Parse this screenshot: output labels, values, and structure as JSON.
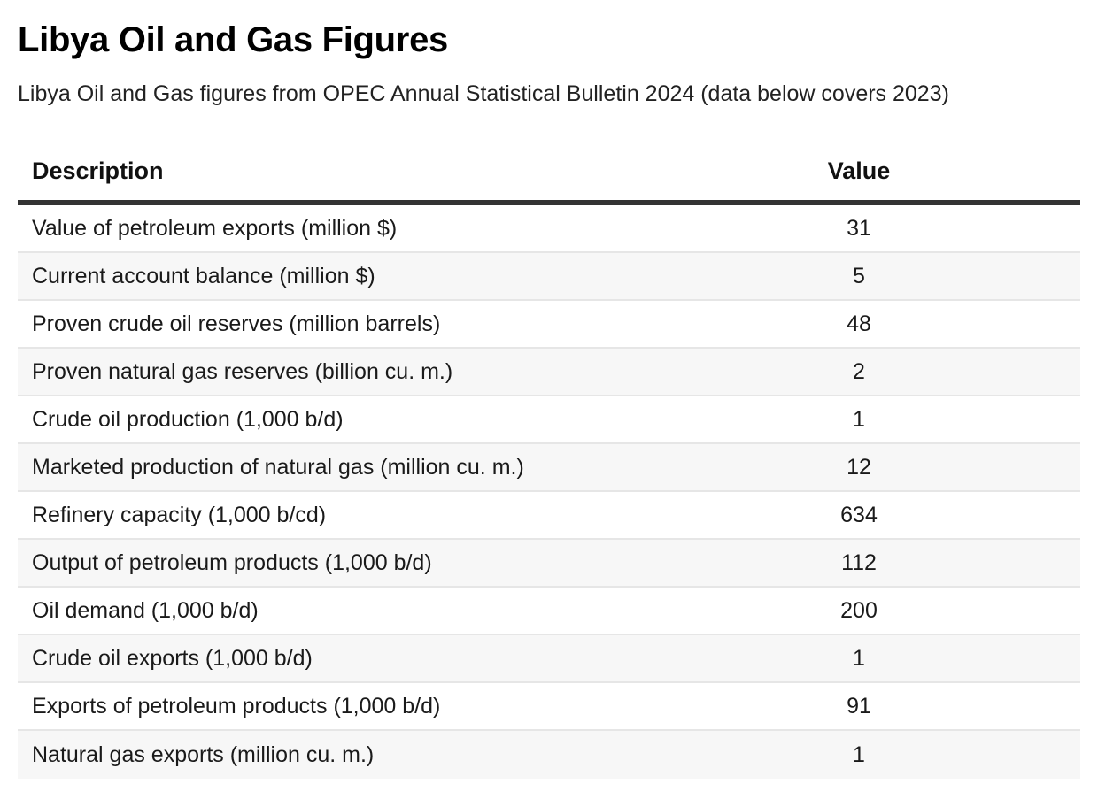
{
  "header": {
    "title": "Libya Oil and Gas Figures",
    "subtitle": "Libya Oil and Gas figures from OPEC Annual Statistical Bulletin 2024 (data below covers 2023)"
  },
  "chart_data": {
    "type": "table",
    "columns": [
      "Description",
      "Value"
    ],
    "rows": [
      {
        "description": "Value of petroleum exports (million $)",
        "value": "31"
      },
      {
        "description": "Current account balance (million $)",
        "value": "5"
      },
      {
        "description": "Proven crude oil reserves (million barrels)",
        "value": "48"
      },
      {
        "description": "Proven natural gas reserves (billion cu. m.)",
        "value": "2"
      },
      {
        "description": "Crude oil production (1,000 b/d)",
        "value": "1"
      },
      {
        "description": "Marketed production of natural gas (million cu. m.)",
        "value": "12"
      },
      {
        "description": "Refinery capacity (1,000 b/cd)",
        "value": "634"
      },
      {
        "description": "Output of petroleum products (1,000 b/d)",
        "value": "112"
      },
      {
        "description": "Oil demand (1,000 b/d)",
        "value": "200"
      },
      {
        "description": "Crude oil exports (1,000 b/d)",
        "value": "1"
      },
      {
        "description": "Exports of petroleum products (1,000 b/d)",
        "value": "91"
      },
      {
        "description": "Natural gas exports (million cu. m.)",
        "value": "1"
      }
    ]
  },
  "colors": {
    "header_rule": "#333333",
    "row_alt": "#f7f7f7",
    "row_divider": "#e6e6e6"
  }
}
